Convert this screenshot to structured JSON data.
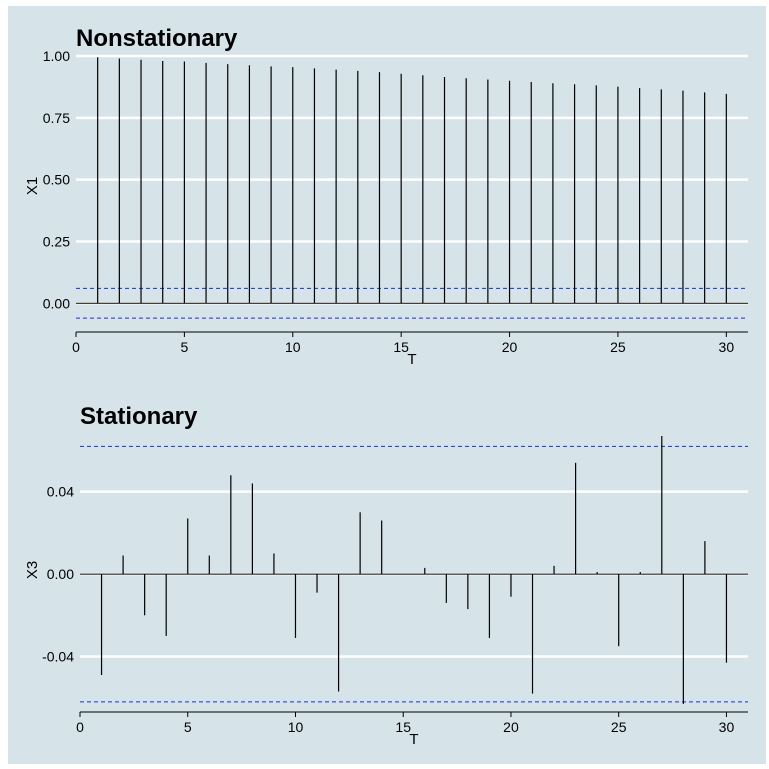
{
  "chart_data": [
    {
      "type": "bar",
      "title": "Nonstationary",
      "xlabel": "T",
      "ylabel": "X1",
      "xlim": [
        0,
        31
      ],
      "ylim": [
        -0.1,
        1.0
      ],
      "x_ticks": [
        "0",
        "5",
        "10",
        "15",
        "20",
        "25",
        "30"
      ],
      "y_ticks": [
        "0.00",
        "0.25",
        "0.50",
        "0.75",
        "1.00"
      ],
      "confidence_band": [
        -0.06,
        0.06
      ],
      "x": [
        1,
        2,
        3,
        4,
        5,
        6,
        7,
        8,
        9,
        10,
        11,
        12,
        13,
        14,
        15,
        16,
        17,
        18,
        19,
        20,
        21,
        22,
        23,
        24,
        25,
        26,
        27,
        28,
        29,
        30
      ],
      "values": [
        0.995,
        0.99,
        0.985,
        0.98,
        0.978,
        0.972,
        0.967,
        0.962,
        0.958,
        0.955,
        0.95,
        0.945,
        0.94,
        0.935,
        0.928,
        0.922,
        0.915,
        0.91,
        0.905,
        0.9,
        0.895,
        0.89,
        0.886,
        0.881,
        0.876,
        0.87,
        0.865,
        0.86,
        0.853,
        0.847
      ],
      "grid": true
    },
    {
      "type": "bar",
      "title": "Stationary",
      "xlabel": "T",
      "ylabel": "X3",
      "xlim": [
        0,
        31
      ],
      "ylim": [
        -0.065,
        0.068
      ],
      "x_ticks": [
        "0",
        "5",
        "10",
        "15",
        "20",
        "25",
        "30"
      ],
      "y_ticks": [
        "-0.04",
        "0.00",
        "0.04"
      ],
      "confidence_band": [
        -0.062,
        0.062
      ],
      "x": [
        1,
        2,
        3,
        4,
        5,
        6,
        7,
        8,
        9,
        10,
        11,
        12,
        13,
        14,
        15,
        16,
        17,
        18,
        19,
        20,
        21,
        22,
        23,
        24,
        25,
        26,
        27,
        28,
        29,
        30
      ],
      "values": [
        -0.049,
        0.009,
        -0.02,
        -0.03,
        0.027,
        0.009,
        0.048,
        0.044,
        0.01,
        -0.031,
        -0.009,
        -0.057,
        0.03,
        0.026,
        0.0,
        0.003,
        -0.014,
        -0.017,
        -0.031,
        -0.011,
        -0.058,
        0.004,
        0.054,
        0.001,
        -0.035,
        0.001,
        0.067,
        -0.063,
        0.016,
        -0.043
      ],
      "grid": true
    }
  ]
}
